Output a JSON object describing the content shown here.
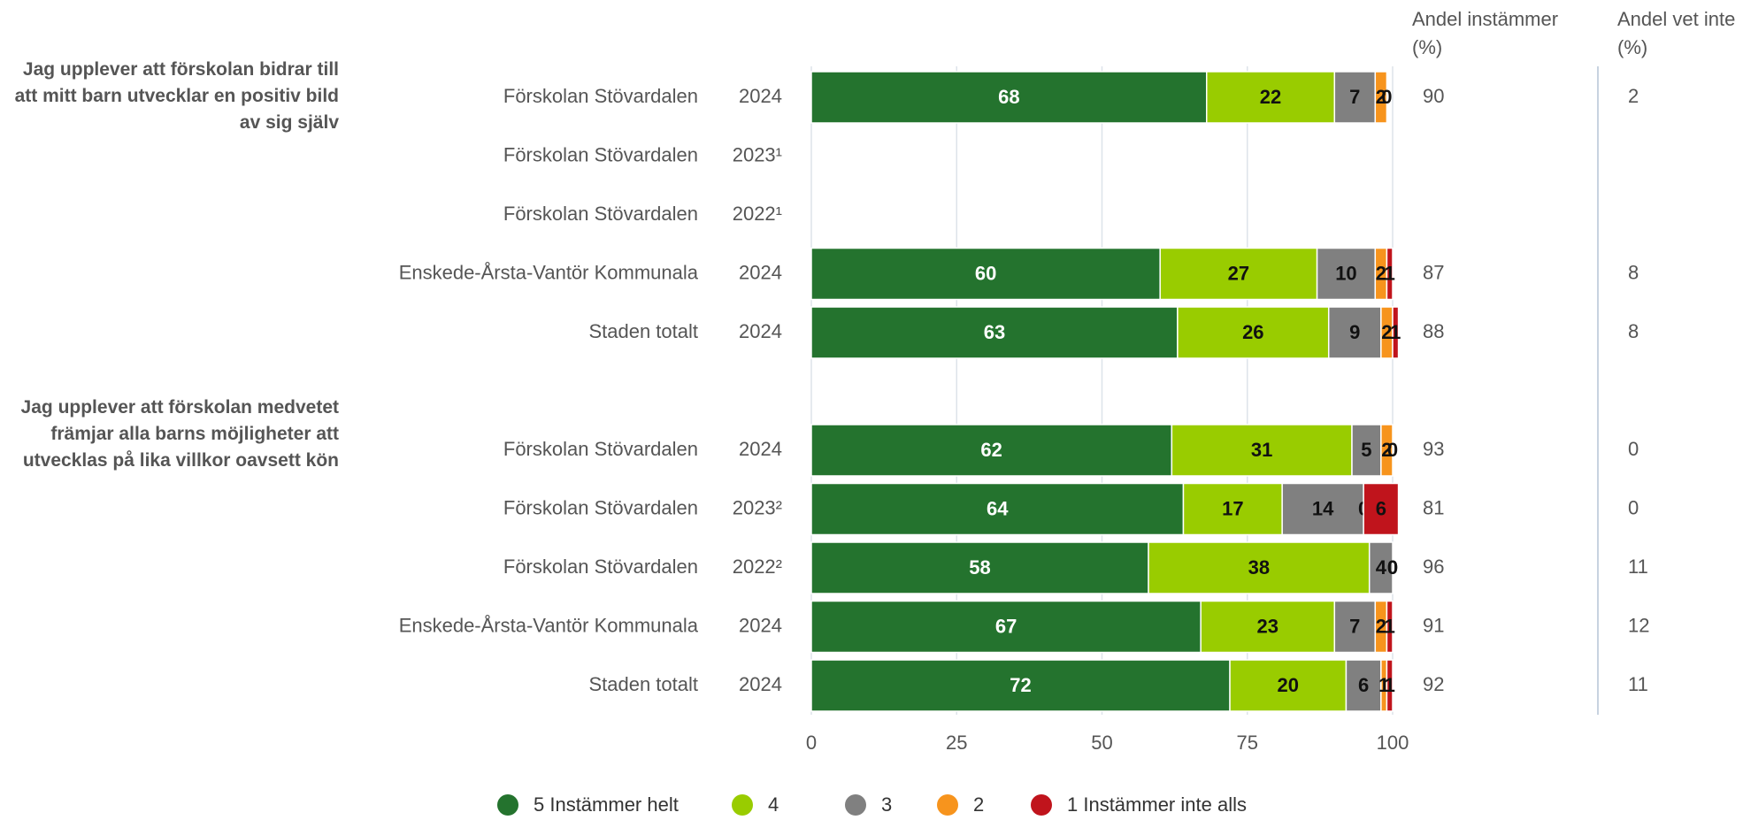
{
  "chart_data": {
    "type": "bar",
    "orientation": "horizontal",
    "stacked": true,
    "xlim": [
      0,
      100
    ],
    "xticks": [
      0,
      25,
      50,
      75,
      100
    ],
    "grid": true,
    "legend": "bottom",
    "series": [
      {
        "name": "5 Instämmer helt",
        "color": "#24732e"
      },
      {
        "name": "4",
        "color": "#99cc00"
      },
      {
        "name": "3",
        "color": "#808080"
      },
      {
        "name": "2",
        "color": "#f7941d"
      },
      {
        "name": "1 Instämmer inte alls",
        "color": "#c0141c"
      }
    ],
    "column_titles": [
      "Andel instämmer (%)",
      "Andel vet inte (%)"
    ],
    "groups": [
      {
        "title": "Jag upplever att förskolan bidrar till att mitt barn utvecklar en positiv bild av sig själv",
        "categories": [
          "Förskolan Stövardalen",
          "Förskolan Stövardalen",
          "Förskolan Stövardalen",
          "Enskede-Årsta-Vantör Kommunala",
          "Staden totalt"
        ],
        "years": [
          "2024",
          "2023¹",
          "2022¹",
          "2024",
          "2024"
        ],
        "values": [
          [
            68,
            null,
            null,
            60,
            63
          ],
          [
            22,
            null,
            null,
            27,
            26
          ],
          [
            7,
            null,
            null,
            10,
            9
          ],
          [
            2,
            null,
            null,
            2,
            2
          ],
          [
            0,
            null,
            null,
            1,
            1
          ]
        ],
        "agree": [
          90,
          null,
          null,
          87,
          88
        ],
        "dont_know": [
          2,
          null,
          null,
          8,
          8
        ]
      },
      {
        "title": "Jag upplever att förskolan medvetet främjar alla barns möjligheter att utvecklas på lika villkor oavsett kön",
        "categories": [
          "Förskolan Stövardalen",
          "Förskolan Stövardalen",
          "Förskolan Stövardalen",
          "Enskede-Årsta-Vantör Kommunala",
          "Staden totalt"
        ],
        "years": [
          "2024",
          "2023²",
          "2022²",
          "2024",
          "2024"
        ],
        "values": [
          [
            62,
            64,
            58,
            67,
            72
          ],
          [
            31,
            17,
            38,
            23,
            20
          ],
          [
            5,
            14,
            4,
            7,
            6
          ],
          [
            2,
            0,
            0,
            2,
            1
          ],
          [
            0,
            6,
            0,
            1,
            1
          ]
        ],
        "agree": [
          93,
          81,
          96,
          91,
          92
        ],
        "dont_know": [
          0,
          0,
          11,
          12,
          11
        ]
      }
    ]
  }
}
